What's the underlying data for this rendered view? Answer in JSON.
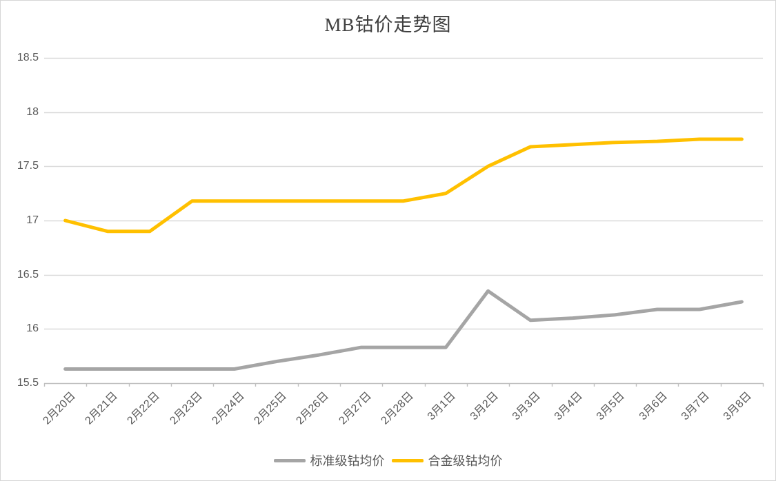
{
  "chart_data": {
    "type": "line",
    "title": "MB钴价走势图",
    "categories": [
      "2月20日",
      "2月21日",
      "2月22日",
      "2月23日",
      "2月24日",
      "2月25日",
      "2月26日",
      "2月27日",
      "2月28日",
      "3月1日",
      "3月2日",
      "3月3日",
      "3月4日",
      "3月5日",
      "3月6日",
      "3月7日",
      "3月8日"
    ],
    "series": [
      {
        "name": "标准级钴均价",
        "color": "#A5A5A5",
        "values": [
          15.63,
          15.63,
          15.63,
          15.63,
          15.63,
          15.7,
          15.76,
          15.83,
          15.83,
          15.83,
          16.35,
          16.08,
          16.1,
          16.13,
          16.18,
          16.18,
          16.25
        ]
      },
      {
        "name": "合金级钴均价",
        "color": "#FFC000",
        "values": [
          17.0,
          16.9,
          16.9,
          17.18,
          17.18,
          17.18,
          17.18,
          17.18,
          17.18,
          17.25,
          17.5,
          17.68,
          17.7,
          17.72,
          17.73,
          17.75,
          17.75
        ]
      }
    ],
    "xlabel": "",
    "ylabel": "",
    "ylim": [
      15.5,
      18.5
    ],
    "y_ticks": [
      15.5,
      16,
      16.5,
      17,
      17.5,
      18,
      18.5
    ],
    "y_tick_labels": [
      "15.5",
      "16",
      "16.5",
      "17",
      "17.5",
      "18",
      "18.5"
    ],
    "grid": true,
    "legend_position": "bottom"
  },
  "colors": {
    "gridline": "#D9D9D9",
    "axis_line": "#BFBFBF",
    "tick_label": "#595959",
    "title_text": "#404040",
    "frame_border": "#D6D6D6"
  }
}
